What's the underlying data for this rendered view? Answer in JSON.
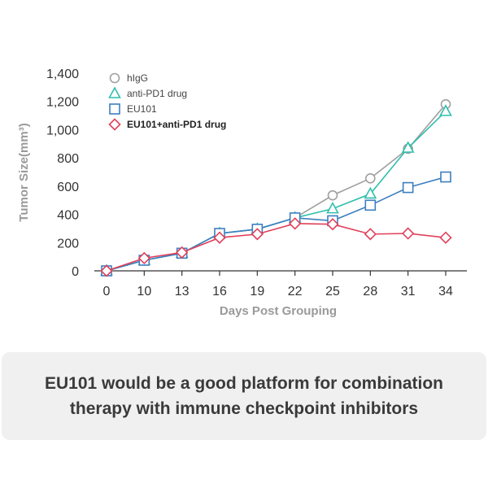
{
  "chart_data": {
    "type": "line",
    "x": [
      0,
      10,
      13,
      16,
      19,
      22,
      25,
      28,
      31,
      34
    ],
    "xlabel": "Days Post Grouping",
    "ylabel": "Tumor Size(mm³)",
    "ylim": [
      0,
      1400
    ],
    "yticks": [
      0,
      200,
      400,
      600,
      800,
      1000,
      1200,
      1400
    ],
    "ytick_labels": [
      "0",
      "200",
      "400",
      "600",
      "800",
      "1,000",
      "1,200",
      "1,400"
    ],
    "xtick_labels": [
      "0",
      "10",
      "13",
      "16",
      "19",
      "22",
      "25",
      "28",
      "31",
      "34"
    ],
    "grid": false,
    "legend_position": "top-left",
    "series": [
      {
        "name": "hIgG",
        "marker": "circle",
        "color": "#a0a0a0",
        "values": [
          0,
          75,
          125,
          265,
          295,
          375,
          535,
          655,
          865,
          1180
        ]
      },
      {
        "name": "anti-PD1 drug",
        "marker": "triangle",
        "color": "#2fbfad",
        "values": [
          0,
          75,
          125,
          265,
          295,
          375,
          440,
          545,
          870,
          1130
        ]
      },
      {
        "name": "EU101",
        "marker": "square",
        "color": "#3d7fc0",
        "values": [
          0,
          75,
          125,
          265,
          295,
          375,
          355,
          465,
          590,
          665
        ]
      },
      {
        "name": "EU101+anti-PD1 drug",
        "marker": "diamond",
        "color": "#e0405a",
        "values": [
          0,
          90,
          130,
          235,
          260,
          335,
          330,
          260,
          265,
          235
        ]
      }
    ]
  },
  "caption": "EU101 would be a good platform for combination therapy with immune checkpoint inhibitors"
}
